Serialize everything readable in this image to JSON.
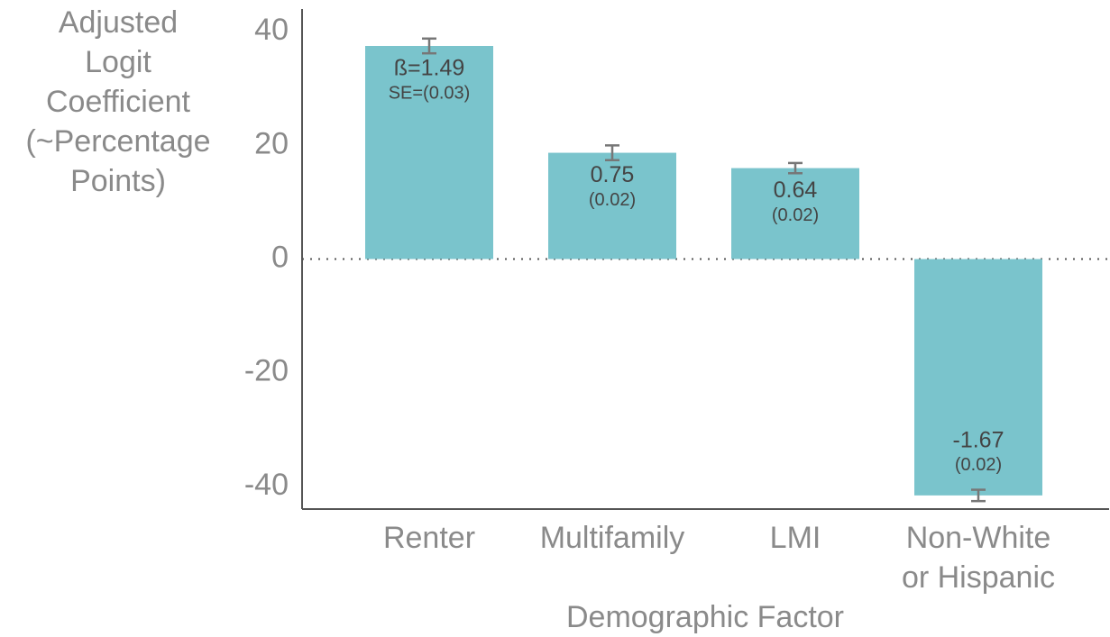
{
  "chart_data": {
    "type": "bar",
    "ylabel": "Adjusted\nLogit\nCoefficient\n(~Percentage\nPoints)",
    "xlabel": "Demographic Factor",
    "categories": [
      "Renter",
      "Multifamily",
      "LMI",
      "Non-White\nor Hispanic"
    ],
    "values": [
      37.5,
      18.7,
      16.0,
      -41.6
    ],
    "errors": [
      1.3,
      1.3,
      0.9,
      1.0
    ],
    "annotations": [
      [
        "ß=1.49",
        "SE=(0.03)"
      ],
      [
        "0.75",
        "(0.02)"
      ],
      [
        "0.64",
        "(0.02)"
      ],
      [
        "-1.67",
        "(0.02)"
      ]
    ],
    "color": "#7ac4cc",
    "error_color": "#777777",
    "ylim": [
      -44,
      44
    ],
    "yticks": [
      40,
      20,
      0,
      -20,
      -40
    ]
  }
}
